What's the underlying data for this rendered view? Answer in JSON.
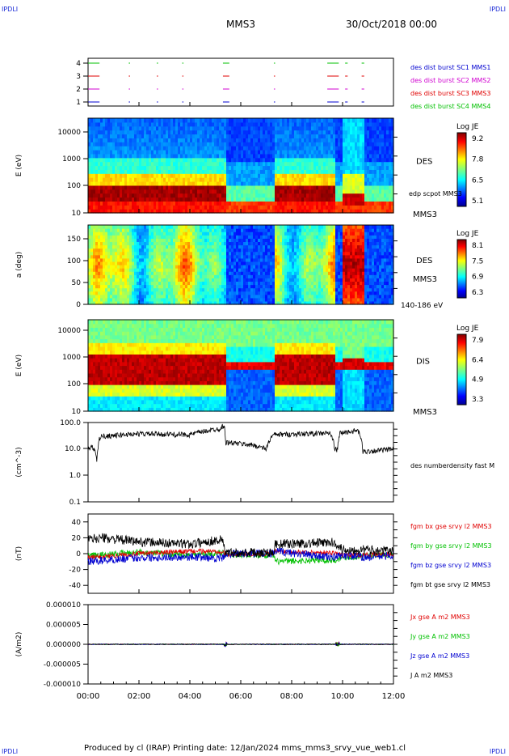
{
  "corners": {
    "top_left": "IPDLI",
    "top_right": "IPDLI",
    "bottom_left": "IPDLI",
    "bottom_right": "IPDLI"
  },
  "header": {
    "spacecraft": "MMS3",
    "date": "30/Oct/2018 00:00"
  },
  "footer": {
    "text": "Produced by cl (IRAP)   Printing date: 12/Jan/2024   mms_mms3_srvy_vue_web1.cl"
  },
  "colors": {
    "red": "#e00000",
    "green": "#00c000",
    "blue": "#0000d0",
    "magenta": "#d000d0",
    "black": "#000000"
  },
  "chart_data": [
    {
      "type": "scatter",
      "id": "burst",
      "yticks": [
        "1",
        "2",
        "3",
        "4"
      ],
      "labels": [
        {
          "text": "des dist burst SC1 MMS1",
          "color": "#0000d0"
        },
        {
          "text": "des dist burst SC2 MMS2",
          "color": "#d000d0"
        },
        {
          "text": "des dist burst SC3 MMS3",
          "color": "#e00000"
        },
        {
          "text": "des dist burst SC4 MMS4",
          "color": "#00c000"
        }
      ],
      "intervals_h": [
        [
          0.0,
          0.45
        ],
        [
          1.6,
          1.65
        ],
        [
          2.7,
          2.75
        ],
        [
          3.7,
          3.75
        ],
        [
          5.3,
          5.55
        ],
        [
          7.3,
          7.35
        ],
        [
          9.4,
          9.85
        ],
        [
          10.1,
          10.2
        ],
        [
          10.75,
          10.85
        ]
      ]
    },
    {
      "type": "heatmap",
      "id": "des-energy",
      "ylabel": "E (eV)",
      "yticks": [
        "10",
        "100",
        "1000",
        "10000"
      ],
      "instrument": "DES",
      "extra_label": "edp scpot MMS3",
      "sc_label": "MMS3",
      "cbar_title": "Log JE",
      "cbar_ticks": [
        "9.2",
        "7.8",
        "6.5",
        "5.1"
      ]
    },
    {
      "type": "heatmap",
      "id": "des-pitch",
      "ylabel": "a (deg)",
      "yticks": [
        "0",
        "50",
        "100",
        "150"
      ],
      "instrument": "DES",
      "sc_label": "MMS3",
      "energy_range": "140-186 eV",
      "cbar_title": "Log JE",
      "cbar_ticks": [
        "8.1",
        "7.5",
        "6.9",
        "6.3"
      ]
    },
    {
      "type": "heatmap",
      "id": "dis-energy",
      "ylabel": "E (eV)",
      "yticks": [
        "10",
        "100",
        "1000",
        "10000"
      ],
      "instrument": "DIS",
      "sc_label": "MMS3",
      "cbar_title": "Log JE",
      "cbar_ticks": [
        "7.9",
        "6.4",
        "4.9",
        "3.3"
      ]
    },
    {
      "type": "line",
      "id": "density",
      "ylabel": "(cm^-3)",
      "yticks": [
        "0.1",
        "1.0",
        "10.0",
        "100.0"
      ],
      "series": [
        {
          "name": "des numberdensity fast M",
          "color": "#000000"
        }
      ],
      "knots": [
        [
          0.0,
          10
        ],
        [
          0.2,
          12
        ],
        [
          0.35,
          3
        ],
        [
          0.45,
          25
        ],
        [
          0.5,
          30
        ],
        [
          2.0,
          38
        ],
        [
          4.0,
          35
        ],
        [
          5.2,
          60
        ],
        [
          5.35,
          80
        ],
        [
          5.4,
          18
        ],
        [
          6.5,
          14
        ],
        [
          7.0,
          10
        ],
        [
          7.3,
          35
        ],
        [
          9.5,
          40
        ],
        [
          9.7,
          10
        ],
        [
          9.8,
          9
        ],
        [
          9.9,
          40
        ],
        [
          10.6,
          50
        ],
        [
          10.8,
          8
        ],
        [
          11.5,
          9
        ],
        [
          12.0,
          10
        ]
      ]
    },
    {
      "type": "line",
      "id": "fgm",
      "ylabel": "(nT)",
      "yticks": [
        "-40",
        "-20",
        "0",
        "20",
        "40"
      ],
      "series": [
        {
          "name": "fgm bx gse srvy l2 MMS3",
          "color": "#e00000"
        },
        {
          "name": "fgm by gse srvy l2 MMS3",
          "color": "#00c000"
        },
        {
          "name": "fgm bz gse srvy l2 MMS3",
          "color": "#0000d0"
        },
        {
          "name": "fgm bt gse srvy l2 MMS3",
          "color": "#000000"
        }
      ],
      "knots": {
        "bt": [
          [
            0,
            18
          ],
          [
            0.5,
            20
          ],
          [
            2,
            15
          ],
          [
            4,
            12
          ],
          [
            5.3,
            18
          ],
          [
            5.4,
            1
          ],
          [
            7.3,
            2
          ],
          [
            7.35,
            12
          ],
          [
            9.7,
            14
          ],
          [
            10.0,
            5
          ],
          [
            10.9,
            5
          ],
          [
            12,
            3
          ]
        ],
        "bx": [
          [
            0,
            -5
          ],
          [
            2,
            0
          ],
          [
            4,
            3
          ],
          [
            5.3,
            3
          ],
          [
            5.4,
            -1
          ],
          [
            7.3,
            0
          ],
          [
            7.35,
            3
          ],
          [
            9.7,
            1
          ],
          [
            10.0,
            -2
          ],
          [
            12,
            -1
          ]
        ],
        "by": [
          [
            0,
            -3
          ],
          [
            2,
            2
          ],
          [
            4,
            -2
          ],
          [
            5.3,
            1
          ],
          [
            5.4,
            -1
          ],
          [
            7.3,
            -2
          ],
          [
            7.35,
            -10
          ],
          [
            9.7,
            -8
          ],
          [
            10.0,
            -5
          ],
          [
            11,
            -3
          ],
          [
            12,
            -1
          ]
        ],
        "bz": [
          [
            0,
            -10
          ],
          [
            2,
            -5
          ],
          [
            4,
            -4
          ],
          [
            5.3,
            -6
          ],
          [
            5.4,
            0
          ],
          [
            7.3,
            0
          ],
          [
            7.35,
            3
          ],
          [
            9.7,
            -5
          ],
          [
            10.0,
            -2
          ],
          [
            11,
            -5
          ],
          [
            12,
            -2
          ]
        ]
      }
    },
    {
      "type": "line",
      "id": "current",
      "ylabel": "(A/m2)",
      "yticks": [
        "-0.000010",
        "-0.000005",
        "0.000000",
        "0.000005",
        "0.000010"
      ],
      "series": [
        {
          "name": "Jx gse A m2 MMS3",
          "color": "#e00000"
        },
        {
          "name": "Jy gse A m2 MMS3",
          "color": "#00c000"
        },
        {
          "name": "Jz gse A m2 MMS3",
          "color": "#0000d0"
        },
        {
          "name": "J A m2 MMS3",
          "color": "#000000"
        }
      ]
    }
  ],
  "x_axis": {
    "ticks": [
      "00:00",
      "02:00",
      "04:00",
      "06:00",
      "08:00",
      "10:00",
      "12:00"
    ],
    "range_h": [
      0,
      12
    ]
  }
}
